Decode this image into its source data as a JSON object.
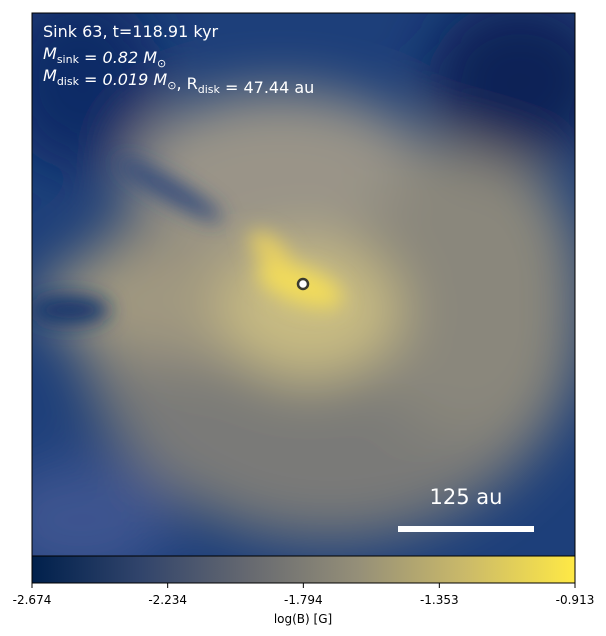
{
  "chart_data": {
    "type": "image",
    "annotations": [
      {
        "text": "Sink 63, t=118.91 kyr"
      },
      {
        "parts": [
          {
            "text": "M"
          },
          {
            "sub": "sink"
          },
          {
            "text": " = 0.82 M"
          },
          {
            "sub": "⊙"
          }
        ]
      },
      {
        "parts": [
          {
            "text": "M"
          },
          {
            "sub": "disk"
          },
          {
            "text": " = 0.019 M"
          },
          {
            "sub": "⊙"
          },
          {
            "text": ", R"
          },
          {
            "sub": "disk"
          },
          {
            "text": " = 47.44 au"
          }
        ]
      }
    ],
    "scalebar_label": "125 au",
    "colorbar": {
      "label": "log(B) [G]",
      "clim": [
        -2.674,
        -0.913
      ],
      "ticks": [
        -2.674,
        -2.234,
        -1.794,
        -1.353,
        -0.913
      ],
      "colors": [
        "#00204c",
        "#31446b",
        "#666970",
        "#958f78",
        "#cbba69",
        "#ffe945"
      ]
    }
  }
}
